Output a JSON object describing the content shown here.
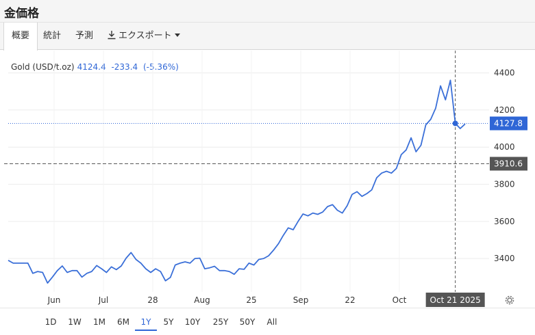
{
  "header": {
    "title": "金価格"
  },
  "tabs": [
    {
      "label": "概要",
      "active": true
    },
    {
      "label": "統計",
      "active": false
    },
    {
      "label": "予測",
      "active": false
    },
    {
      "label": "エクスポート",
      "active": false,
      "icon": "download-icon"
    }
  ],
  "legend": {
    "name": "Gold (USD/t.oz)",
    "value": "4124.4",
    "change": "-233.4",
    "change_pct": "(-5.36%)"
  },
  "colors": {
    "line": "#3a6fd8",
    "accent": "#2f66d6",
    "ref_label_bg": "#555555",
    "grid": "#ececec"
  },
  "chart_data": {
    "type": "line",
    "title": "",
    "xlabel": "",
    "ylabel": "",
    "ylim": [
      3220,
      4520
    ],
    "grid": true,
    "x_tick_labels": [
      "Jun",
      "Jul",
      "28",
      "Aug",
      "25",
      "Sep",
      "22",
      "Oct"
    ],
    "y_tick_labels": [
      "4400",
      "4200",
      "4000",
      "3800",
      "3600",
      "3400"
    ],
    "series": [
      {
        "values": [
          3390,
          3375,
          3375,
          3375,
          3375,
          3320,
          3330,
          3325,
          3268,
          3300,
          3335,
          3360,
          3325,
          3335,
          3335,
          3300,
          3320,
          3330,
          3362,
          3345,
          3325,
          3355,
          3340,
          3360,
          3402,
          3432,
          3395,
          3375,
          3345,
          3325,
          3345,
          3330,
          3280,
          3298,
          3365,
          3375,
          3382,
          3375,
          3400,
          3402,
          3345,
          3350,
          3358,
          3335,
          3335,
          3330,
          3315,
          3345,
          3342,
          3375,
          3365,
          3395,
          3400,
          3415,
          3445,
          3480,
          3525,
          3565,
          3555,
          3600,
          3640,
          3630,
          3645,
          3638,
          3650,
          3680,
          3690,
          3660,
          3645,
          3685,
          3745,
          3760,
          3735,
          3750,
          3770,
          3835,
          3860,
          3870,
          3860,
          3885,
          3960,
          3985,
          4050,
          3975,
          4010,
          4120,
          4150,
          4210,
          4330,
          4255,
          4360,
          4127.8,
          4100,
          4125
        ]
      }
    ],
    "current_value": "4127.8",
    "reference_value": "3910.6",
    "hover_date": "Oct 21 2025"
  },
  "range_buttons": [
    {
      "label": "1D",
      "active": false
    },
    {
      "label": "1W",
      "active": false
    },
    {
      "label": "1M",
      "active": false
    },
    {
      "label": "6M",
      "active": false
    },
    {
      "label": "1Y",
      "active": true
    },
    {
      "label": "5Y",
      "active": false
    },
    {
      "label": "10Y",
      "active": false
    },
    {
      "label": "25Y",
      "active": false
    },
    {
      "label": "50Y",
      "active": false
    },
    {
      "label": "All",
      "active": false
    }
  ]
}
